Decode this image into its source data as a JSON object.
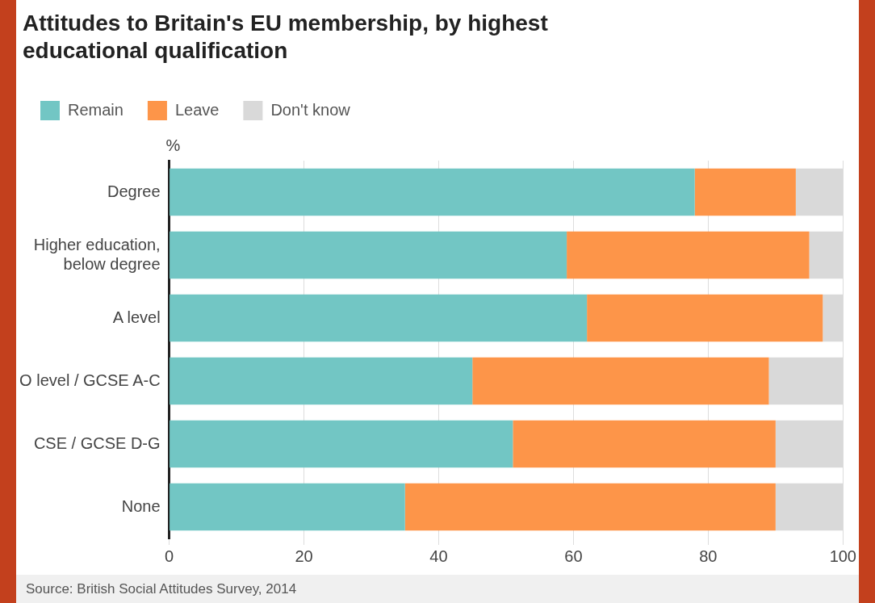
{
  "chart_data": {
    "type": "bar",
    "orientation": "horizontal",
    "stacked": true,
    "title": "Attitudes to Britain's EU membership, by highest educational qualification",
    "xlabel": "%",
    "categories": [
      "Degree",
      "Higher education, below degree",
      "A level",
      "O level / GCSE A-C",
      "CSE / GCSE D-G",
      "None"
    ],
    "series": [
      {
        "name": "Remain",
        "color": "#72c6c4",
        "values": [
          78,
          59,
          62,
          45,
          51,
          35
        ]
      },
      {
        "name": "Leave",
        "color": "#fd9549",
        "values": [
          15,
          36,
          35,
          44,
          39,
          55
        ]
      },
      {
        "name": "Don't know",
        "color": "#d9d9d9",
        "values": [
          7,
          5,
          3,
          11,
          10,
          10
        ]
      }
    ],
    "xlim": [
      0,
      100
    ],
    "xticks": [
      0,
      20,
      40,
      60,
      80,
      100
    ],
    "grid": "x",
    "legend": "top left",
    "annotations": [
      "Source: British Social Attitudes Survey, 2014"
    ]
  }
}
